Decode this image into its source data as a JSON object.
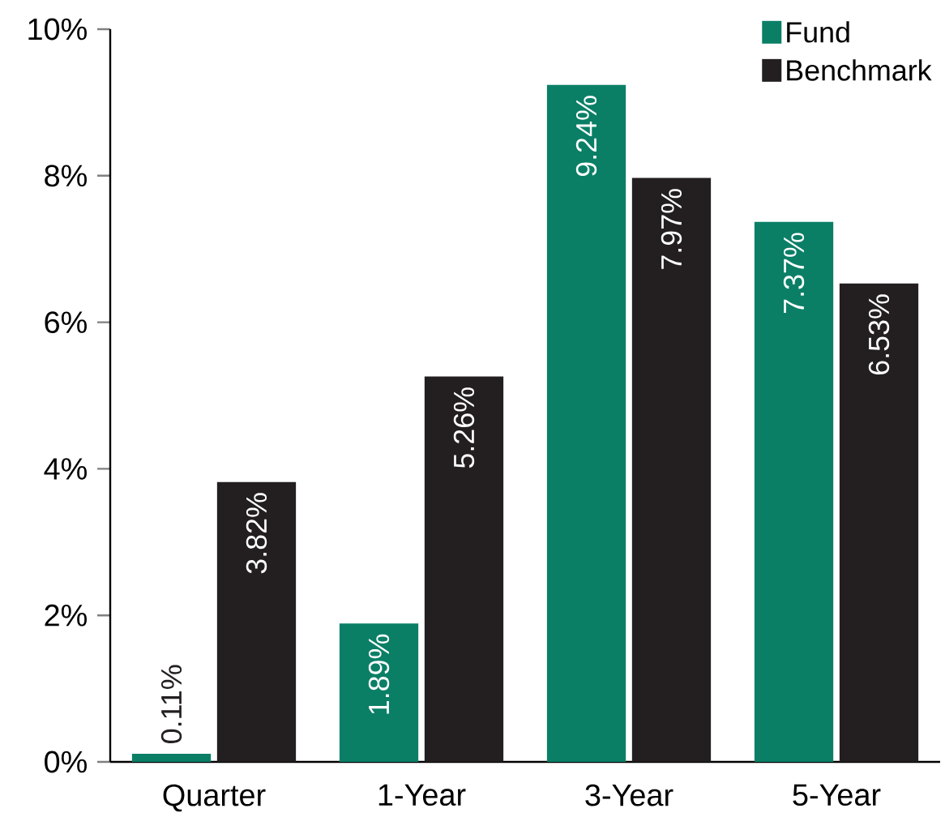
{
  "chart_data": {
    "type": "bar",
    "categories": [
      "Quarter",
      "1-Year",
      "3-Year",
      "5-Year"
    ],
    "series": [
      {
        "name": "Fund",
        "color": "#0a7f66",
        "values": [
          0.11,
          1.89,
          9.24,
          7.37
        ],
        "value_labels": [
          "0.11%",
          "1.89%",
          "9.24%",
          "7.37%"
        ]
      },
      {
        "name": "Benchmark",
        "color": "#231f20",
        "values": [
          3.82,
          5.26,
          7.97,
          6.53
        ],
        "value_labels": [
          "3.82%",
          "5.26%",
          "7.97%",
          "6.53%"
        ]
      }
    ],
    "ylim": [
      0,
      10
    ],
    "yticks": [
      {
        "value": 0,
        "label": "0%"
      },
      {
        "value": 2,
        "label": "2%"
      },
      {
        "value": 4,
        "label": "4%"
      },
      {
        "value": 6,
        "label": "6%"
      },
      {
        "value": 8,
        "label": "8%"
      },
      {
        "value": 10,
        "label": "10%"
      }
    ],
    "grid": false,
    "legend": "top right"
  }
}
